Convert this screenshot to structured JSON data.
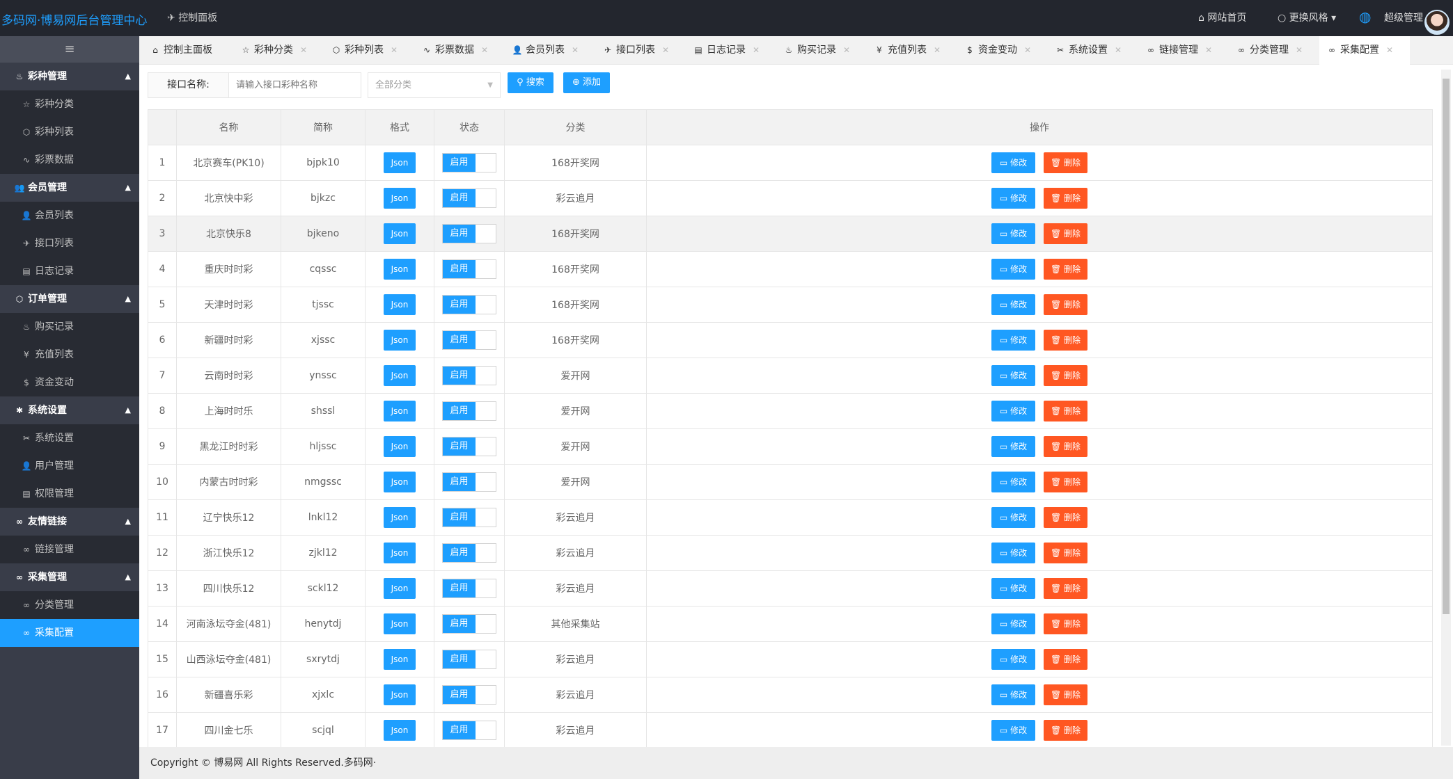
{
  "header": {
    "title": "多码网·博易网后台管理中心",
    "breadcrumb": "控制面板",
    "home": "网站首页",
    "theme": "更换风格",
    "user": "超级管理"
  },
  "sidebar": {
    "toggle": "≡",
    "groups": [
      {
        "label": "彩种管理",
        "icon": "fire-icon",
        "items": [
          {
            "label": "彩种分类",
            "icon": "star-icon"
          },
          {
            "label": "彩种列表",
            "icon": "cube-icon"
          },
          {
            "label": "彩票数据",
            "icon": "pulse-icon"
          }
        ]
      },
      {
        "label": "会员管理",
        "icon": "users-icon",
        "items": [
          {
            "label": "会员列表",
            "icon": "user-icon"
          },
          {
            "label": "接口列表",
            "icon": "send-icon"
          },
          {
            "label": "日志记录",
            "icon": "calendar-icon"
          }
        ]
      },
      {
        "label": "订单管理",
        "icon": "cube-icon",
        "items": [
          {
            "label": "购买记录",
            "icon": "fire-icon"
          },
          {
            "label": "充值列表",
            "icon": "yen-icon"
          },
          {
            "label": "资金变动",
            "icon": "dollar-icon"
          }
        ]
      },
      {
        "label": "系统设置",
        "icon": "gear-icon",
        "items": [
          {
            "label": "系统设置",
            "icon": "tools-icon"
          },
          {
            "label": "用户管理",
            "icon": "user-icon"
          },
          {
            "label": "权限管理",
            "icon": "calendar-icon"
          }
        ]
      },
      {
        "label": "友情链接",
        "icon": "link-icon",
        "items": [
          {
            "label": "链接管理",
            "icon": "link-icon"
          }
        ]
      },
      {
        "label": "采集管理",
        "icon": "link-icon",
        "items": [
          {
            "label": "分类管理",
            "icon": "link-icon"
          },
          {
            "label": "采集配置",
            "icon": "link-icon",
            "active": true
          }
        ]
      }
    ]
  },
  "tabs": [
    {
      "label": "控制主面板",
      "icon": "home-icon",
      "closable": false
    },
    {
      "label": "彩种分类",
      "icon": "star-icon"
    },
    {
      "label": "彩种列表",
      "icon": "cube-icon"
    },
    {
      "label": "彩票数据",
      "icon": "pulse-icon"
    },
    {
      "label": "会员列表",
      "icon": "user-icon"
    },
    {
      "label": "接口列表",
      "icon": "send-icon"
    },
    {
      "label": "日志记录",
      "icon": "calendar-icon"
    },
    {
      "label": "购买记录",
      "icon": "fire-icon"
    },
    {
      "label": "充值列表",
      "icon": "yen-icon"
    },
    {
      "label": "资金变动",
      "icon": "dollar-icon"
    },
    {
      "label": "系统设置",
      "icon": "tools-icon"
    },
    {
      "label": "链接管理",
      "icon": "link-icon"
    },
    {
      "label": "分类管理",
      "icon": "link-icon"
    },
    {
      "label": "采集配置",
      "icon": "link-icon",
      "active": true
    }
  ],
  "toolbar": {
    "label": "接口名称:",
    "placeholder": "请输入接口彩种名称",
    "category": "全部分类",
    "search": "搜索",
    "add": "添加"
  },
  "table": {
    "columns": [
      "",
      "名称",
      "简称",
      "格式",
      "状态",
      "分类",
      "操作"
    ],
    "format_label": "Json",
    "status_label": "启用",
    "edit_label": "修改",
    "delete_label": "删除",
    "rows": [
      [
        1,
        "北京赛车(PK10)",
        "bjpk10",
        "168开奖网"
      ],
      [
        2,
        "北京快中彩",
        "bjkzc",
        "彩云追月"
      ],
      [
        3,
        "北京快乐8",
        "bjkeno",
        "168开奖网"
      ],
      [
        4,
        "重庆时时彩",
        "cqssc",
        "168开奖网"
      ],
      [
        5,
        "天津时时彩",
        "tjssc",
        "168开奖网"
      ],
      [
        6,
        "新疆时时彩",
        "xjssc",
        "168开奖网"
      ],
      [
        7,
        "云南时时彩",
        "ynssc",
        "爱开网"
      ],
      [
        8,
        "上海时时乐",
        "shssl",
        "爱开网"
      ],
      [
        9,
        "黑龙江时时彩",
        "hljssc",
        "爱开网"
      ],
      [
        10,
        "内蒙古时时彩",
        "nmgssc",
        "爱开网"
      ],
      [
        11,
        "辽宁快乐12",
        "lnkl12",
        "彩云追月"
      ],
      [
        12,
        "浙江快乐12",
        "zjkl12",
        "彩云追月"
      ],
      [
        13,
        "四川快乐12",
        "sckl12",
        "彩云追月"
      ],
      [
        14,
        "河南泳坛夺金(481)",
        "henytdj",
        "其他采集站"
      ],
      [
        15,
        "山西泳坛夺金(481)",
        "sxrytdj",
        "彩云追月"
      ],
      [
        16,
        "新疆喜乐彩",
        "xjxlc",
        "彩云追月"
      ],
      [
        17,
        "四川金七乐",
        "scjql",
        "彩云追月"
      ]
    ],
    "hover_row": 3
  },
  "footer": "Copyright © 博易网 All Rights Reserved.多码网·",
  "colors": {
    "accent": "#1e9fff",
    "danger": "#ff5722",
    "header": "#23262e",
    "sidebar": "#393d49"
  }
}
